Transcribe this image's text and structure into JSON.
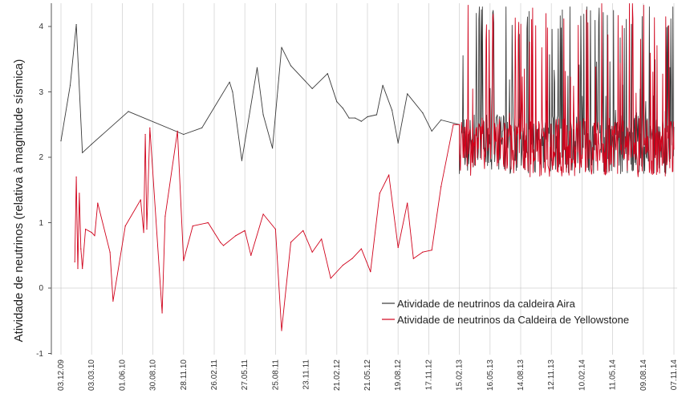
{
  "chart_data": {
    "type": "line",
    "title": "",
    "xlabel": "",
    "ylabel": "Atividade de neutrinos (relativa à magnitude sísmica)",
    "ylim": [
      -1,
      4.4
    ],
    "y_ticks": [
      "-1",
      "0",
      "1",
      "2",
      "3",
      "4"
    ],
    "x_ticks": [
      "03.12.09",
      "03.03.10",
      "01.06.10",
      "30.08.10",
      "28.11.10",
      "26.02.11",
      "27.05.11",
      "25.08.11",
      "23.11.11",
      "21.02.12",
      "21.05.12",
      "19.08.12",
      "17.11.12",
      "15.02.13",
      "16.05.13",
      "14.08.13",
      "12.11.13",
      "10.02.14",
      "11.05.14",
      "09.08.14",
      "07.11.14"
    ],
    "grid": "vertical",
    "legend_position": "bottom-right",
    "series": [
      {
        "name": "Atividade de neutrinos da caldeira Aira",
        "color": "#3a3a3a",
        "x": [
          0,
          0.3,
          0.5,
          0.7,
          1,
          2.2,
          4,
          4.6,
          5.5,
          5.6,
          5.9,
          6.4,
          6.6,
          6.9,
          7.2,
          7.5,
          8.2,
          8.7,
          9,
          9.2,
          9.4,
          9.6,
          9.8,
          10,
          10.3,
          10.5,
          10.8,
          11,
          11.3,
          11.8,
          12.1,
          12.4,
          13
        ],
        "values": [
          2.25,
          3.1,
          4.03,
          2.07,
          2.2,
          2.7,
          2.35,
          2.45,
          3.15,
          3.0,
          1.95,
          3.37,
          2.65,
          2.14,
          3.68,
          3.4,
          3.05,
          3.28,
          2.85,
          2.75,
          2.6,
          2.6,
          2.55,
          2.62,
          2.65,
          3.1,
          2.72,
          2.22,
          2.97,
          2.68,
          2.4,
          2.57,
          2.5
        ]
      },
      {
        "name": "Atividade de neutrinos da Caldeira de Yellowstone",
        "color": "#d0021b",
        "x": [
          0.45,
          0.5,
          0.55,
          0.6,
          0.65,
          0.7,
          0.8,
          1.0,
          1.1,
          1.2,
          1.6,
          1.7,
          2.1,
          2.6,
          2.7,
          2.75,
          2.8,
          2.9,
          3.3,
          3.4,
          3.8,
          4.0,
          4.3,
          4.8,
          5.2,
          5.3,
          5.7,
          6.0,
          6.2,
          6.6,
          7.0,
          7.2,
          7.5,
          7.9,
          8.2,
          8.5,
          8.8,
          9.2,
          9.5,
          9.8,
          10.1,
          10.4,
          10.7,
          11.0,
          11.3,
          11.5,
          11.8,
          12.1,
          12.4,
          12.8,
          13
        ],
        "values": [
          0.4,
          1.7,
          0.3,
          1.45,
          0.6,
          0.3,
          0.9,
          0.85,
          0.8,
          1.3,
          0.55,
          -0.2,
          0.95,
          1.35,
          0.85,
          2.35,
          0.9,
          2.45,
          -0.38,
          1.1,
          2.4,
          0.42,
          0.95,
          1.0,
          0.7,
          0.65,
          0.8,
          0.88,
          0.5,
          1.13,
          0.9,
          -0.65,
          0.7,
          0.88,
          0.55,
          0.75,
          0.15,
          0.35,
          0.45,
          0.6,
          0.25,
          1.45,
          1.73,
          0.62,
          1.3,
          0.45,
          0.55,
          0.58,
          1.55,
          2.5,
          2.5
        ]
      }
    ],
    "noisy_segment": {
      "x_range": [
        13,
        20
      ],
      "aira_range": [
        1.75,
        4.3
      ],
      "yellowstone_range": [
        1.7,
        4.35
      ],
      "note_points": 420
    }
  }
}
